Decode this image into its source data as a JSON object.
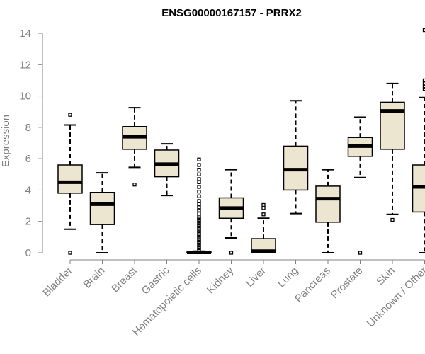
{
  "chart_data": {
    "type": "box",
    "title": "ENSG00000167157 - PRRX2",
    "xlabel": "",
    "ylabel": "Expression",
    "ylim": [
      0,
      14
    ],
    "yticks": [
      0,
      2,
      4,
      6,
      8,
      10,
      12,
      14
    ],
    "grid": false,
    "colors": {
      "box_fill": "#ece6d0",
      "box_stroke": "#000000",
      "axis": "#808080"
    },
    "categories": [
      "Bladder",
      "Brain",
      "Breast",
      "Gastric",
      "Hematopoietic cells",
      "Kidney",
      "Liver",
      "Lung",
      "Pancreas",
      "Prostate",
      "Skin",
      "Unknown / Other"
    ],
    "boxes": [
      {
        "q1": 3.8,
        "median": 4.5,
        "q3": 5.6,
        "whisker_low": 1.5,
        "whisker_high": 8.15,
        "outliers": [
          0.0,
          8.8
        ]
      },
      {
        "q1": 1.8,
        "median": 3.1,
        "q3": 3.85,
        "whisker_low": 0.0,
        "whisker_high": 5.1,
        "outliers": []
      },
      {
        "q1": 6.6,
        "median": 7.4,
        "q3": 8.05,
        "whisker_low": 5.45,
        "whisker_high": 9.25,
        "outliers": [
          4.35
        ]
      },
      {
        "q1": 4.85,
        "median": 5.65,
        "q3": 6.55,
        "whisker_low": 3.65,
        "whisker_high": 6.95,
        "outliers": []
      },
      {
        "q1": 0.0,
        "median": 0.02,
        "q3": 0.05,
        "whisker_low": 0.0,
        "whisker_high": 0.1,
        "outliers": [
          0.2,
          0.3,
          0.4,
          0.5,
          0.6,
          0.7,
          0.8,
          0.9,
          1.0,
          1.1,
          1.2,
          1.3,
          1.4,
          1.5,
          1.6,
          1.7,
          1.8,
          1.9,
          2.0,
          2.1,
          2.2,
          2.3,
          2.5,
          2.7,
          2.9,
          3.1,
          3.3,
          3.6,
          3.9,
          4.2,
          4.5,
          4.7,
          5.0,
          5.3,
          5.6,
          5.95
        ]
      },
      {
        "q1": 2.2,
        "median": 2.85,
        "q3": 3.5,
        "whisker_low": 0.95,
        "whisker_high": 5.3,
        "outliers": [
          0.0
        ]
      },
      {
        "q1": 0.0,
        "median": 0.1,
        "q3": 0.9,
        "whisker_low": 0.0,
        "whisker_high": 2.2,
        "outliers": [
          2.45,
          2.85,
          3.05
        ]
      },
      {
        "q1": 4.0,
        "median": 5.3,
        "q3": 6.8,
        "whisker_low": 2.5,
        "whisker_high": 9.7,
        "outliers": []
      },
      {
        "q1": 1.95,
        "median": 3.45,
        "q3": 4.25,
        "whisker_low": 0.0,
        "whisker_high": 5.3,
        "outliers": []
      },
      {
        "q1": 6.15,
        "median": 6.8,
        "q3": 7.35,
        "whisker_low": 4.8,
        "whisker_high": 8.65,
        "outliers": [
          0.0
        ]
      },
      {
        "q1": 6.6,
        "median": 9.05,
        "q3": 9.6,
        "whisker_low": 2.45,
        "whisker_high": 10.8,
        "outliers": [
          2.1
        ]
      },
      {
        "q1": 2.6,
        "median": 4.2,
        "q3": 5.6,
        "whisker_low": 0.0,
        "whisker_high": 9.9,
        "outliers": [
          10.45,
          10.6,
          10.8,
          11.0,
          14.2
        ]
      }
    ]
  }
}
